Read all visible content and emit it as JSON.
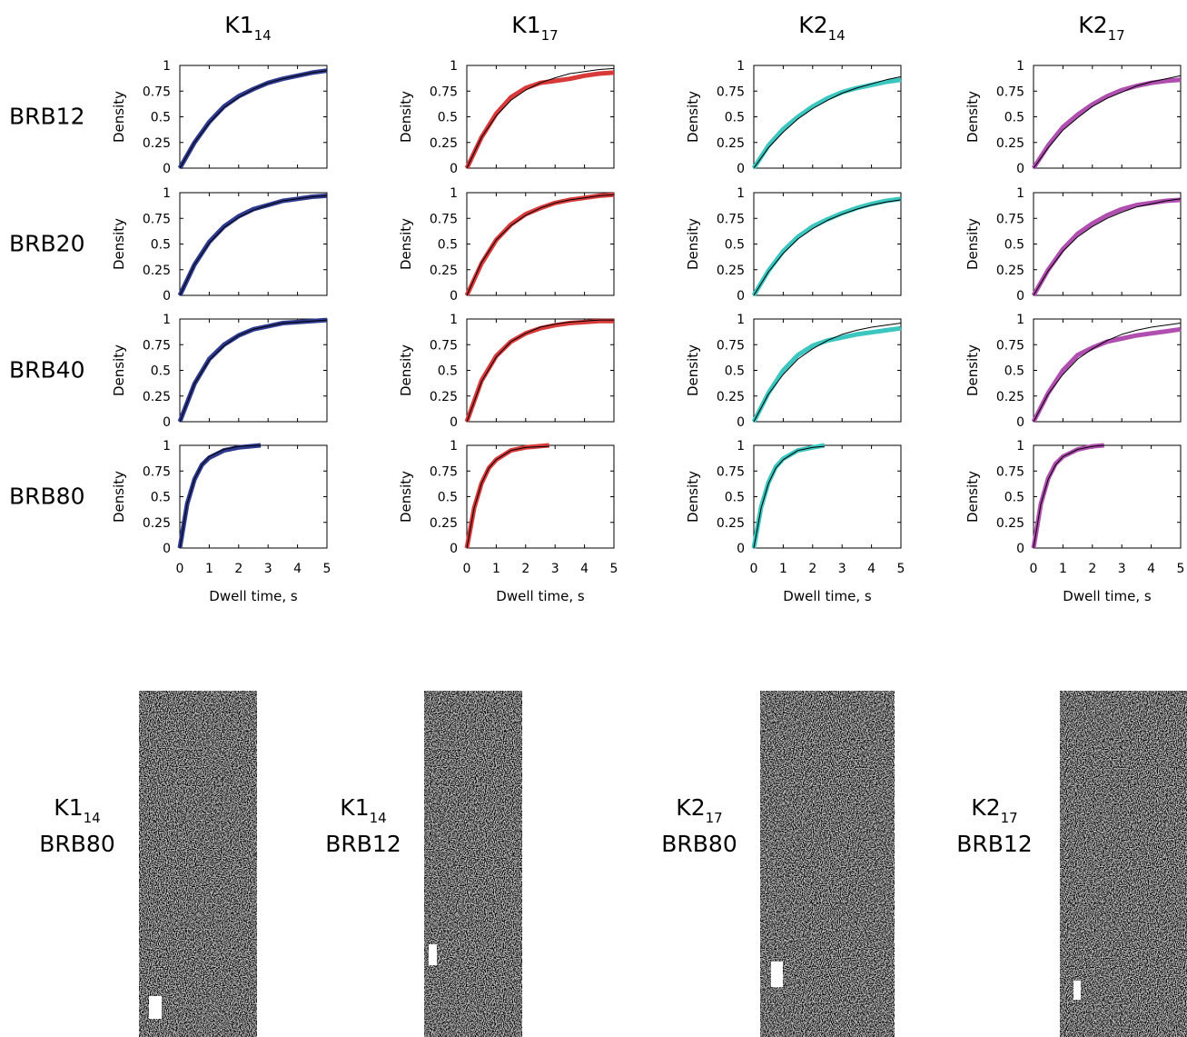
{
  "column_titles": [
    {
      "text": "K1",
      "subscript": "14"
    },
    {
      "text": "K1",
      "subscript": "17"
    },
    {
      "text": "K2",
      "subscript": "14"
    },
    {
      "text": "K2",
      "subscript": "17"
    }
  ],
  "row_labels": [
    "BRB12",
    "BRB20",
    "BRB40",
    "BRB80"
  ],
  "kymographs": [
    {
      "label": {
        "text": "K1",
        "subscript": "14"
      },
      "buffer": "BRB80"
    },
    {
      "label": {
        "text": "K1",
        "subscript": "14"
      },
      "buffer": "BRB12"
    },
    {
      "label": {
        "text": "K2",
        "subscript": "17"
      },
      "buffer": "BRB80"
    },
    {
      "label": {
        "text": "K2",
        "subscript": "17"
      },
      "buffer": "BRB12"
    }
  ],
  "chart_data": [
    {
      "type": "line",
      "ylabel": "Density",
      "xlim": [
        0,
        5
      ],
      "ylim": [
        0,
        1
      ],
      "xticks": [
        0,
        1,
        2,
        3,
        4,
        5
      ],
      "yticks": [
        0,
        0.25,
        0.5,
        0.75,
        1
      ],
      "show_xtick_labels": false,
      "x": [
        0,
        0.5,
        1,
        1.5,
        2,
        2.5,
        3,
        3.5,
        4,
        4.5,
        5
      ],
      "series": [
        {
          "color": "#2e3a8f",
          "width": 5,
          "values": [
            0,
            0.25,
            0.45,
            0.6,
            0.7,
            0.77,
            0.83,
            0.87,
            0.9,
            0.93,
            0.95
          ]
        },
        {
          "color": "#000000",
          "width": 1,
          "values": [
            0,
            0.25,
            0.44,
            0.59,
            0.69,
            0.77,
            0.83,
            0.87,
            0.9,
            0.93,
            0.95
          ]
        }
      ]
    },
    {
      "type": "line",
      "ylabel": "Density",
      "xlim": [
        0,
        5
      ],
      "ylim": [
        0,
        1
      ],
      "xticks": [
        0,
        1,
        2,
        3,
        4,
        5
      ],
      "yticks": [
        0,
        0.25,
        0.5,
        0.75,
        1
      ],
      "show_xtick_labels": false,
      "x": [
        0,
        0.5,
        1,
        1.5,
        2,
        2.5,
        3,
        3.5,
        4,
        4.5,
        5
      ],
      "series": [
        {
          "color": "#d83a3a",
          "width": 5,
          "values": [
            0,
            0.3,
            0.53,
            0.69,
            0.78,
            0.83,
            0.85,
            0.87,
            0.9,
            0.92,
            0.93
          ]
        },
        {
          "color": "#000000",
          "width": 1,
          "values": [
            0,
            0.3,
            0.51,
            0.66,
            0.76,
            0.83,
            0.88,
            0.92,
            0.94,
            0.96,
            0.97
          ]
        }
      ]
    },
    {
      "type": "line",
      "ylabel": "Density",
      "xlim": [
        0,
        5
      ],
      "ylim": [
        0,
        1
      ],
      "xticks": [
        0,
        1,
        2,
        3,
        4,
        5
      ],
      "yticks": [
        0,
        0.25,
        0.5,
        0.75,
        1
      ],
      "show_xtick_labels": false,
      "x": [
        0,
        0.5,
        1,
        1.5,
        2,
        2.5,
        3,
        3.5,
        4,
        4.5,
        5
      ],
      "series": [
        {
          "color": "#3cc6c0",
          "width": 5,
          "values": [
            0,
            0.22,
            0.38,
            0.5,
            0.6,
            0.68,
            0.74,
            0.78,
            0.81,
            0.84,
            0.86
          ]
        },
        {
          "color": "#000000",
          "width": 1,
          "values": [
            0,
            0.2,
            0.35,
            0.48,
            0.58,
            0.66,
            0.73,
            0.78,
            0.82,
            0.86,
            0.89
          ]
        }
      ]
    },
    {
      "type": "line",
      "ylabel": "Density",
      "xlim": [
        0,
        5
      ],
      "ylim": [
        0,
        1
      ],
      "xticks": [
        0,
        1,
        2,
        3,
        4,
        5
      ],
      "yticks": [
        0,
        0.25,
        0.5,
        0.75,
        1
      ],
      "show_xtick_labels": false,
      "x": [
        0,
        0.5,
        1,
        1.5,
        2,
        2.5,
        3,
        3.5,
        4,
        4.5,
        5
      ],
      "series": [
        {
          "color": "#b04fb0",
          "width": 5,
          "values": [
            0,
            0.22,
            0.4,
            0.52,
            0.62,
            0.7,
            0.76,
            0.8,
            0.83,
            0.85,
            0.86
          ]
        },
        {
          "color": "#000000",
          "width": 1,
          "values": [
            0,
            0.2,
            0.37,
            0.49,
            0.6,
            0.68,
            0.74,
            0.8,
            0.84,
            0.87,
            0.9
          ]
        }
      ]
    },
    {
      "type": "line",
      "ylabel": "Density",
      "xlim": [
        0,
        5
      ],
      "ylim": [
        0,
        1
      ],
      "xticks": [
        0,
        1,
        2,
        3,
        4,
        5
      ],
      "yticks": [
        0,
        0.25,
        0.5,
        0.75,
        1
      ],
      "show_xtick_labels": false,
      "x": [
        0,
        0.5,
        1,
        1.5,
        2,
        2.5,
        3,
        3.5,
        4,
        4.5,
        5
      ],
      "series": [
        {
          "color": "#2e3a8f",
          "width": 5,
          "values": [
            0,
            0.3,
            0.52,
            0.67,
            0.77,
            0.84,
            0.88,
            0.92,
            0.94,
            0.96,
            0.97
          ]
        },
        {
          "color": "#000000",
          "width": 1,
          "values": [
            0,
            0.3,
            0.51,
            0.66,
            0.76,
            0.83,
            0.88,
            0.92,
            0.94,
            0.96,
            0.97
          ]
        }
      ]
    },
    {
      "type": "line",
      "ylabel": "Density",
      "xlim": [
        0,
        5
      ],
      "ylim": [
        0,
        1
      ],
      "xticks": [
        0,
        1,
        2,
        3,
        4,
        5
      ],
      "yticks": [
        0,
        0.25,
        0.5,
        0.75,
        1
      ],
      "show_xtick_labels": false,
      "x": [
        0,
        0.5,
        1,
        1.5,
        2,
        2.5,
        3,
        3.5,
        4,
        4.5,
        5
      ],
      "series": [
        {
          "color": "#d83a3a",
          "width": 5,
          "values": [
            0,
            0.31,
            0.54,
            0.69,
            0.79,
            0.85,
            0.9,
            0.93,
            0.95,
            0.97,
            0.98
          ]
        },
        {
          "color": "#000000",
          "width": 1,
          "values": [
            0,
            0.32,
            0.54,
            0.68,
            0.78,
            0.85,
            0.9,
            0.93,
            0.95,
            0.97,
            0.98
          ]
        }
      ]
    },
    {
      "type": "line",
      "ylabel": "Density",
      "xlim": [
        0,
        5
      ],
      "ylim": [
        0,
        1
      ],
      "xticks": [
        0,
        1,
        2,
        3,
        4,
        5
      ],
      "yticks": [
        0,
        0.25,
        0.5,
        0.75,
        1
      ],
      "show_xtick_labels": false,
      "x": [
        0,
        0.5,
        1,
        1.5,
        2,
        2.5,
        3,
        3.5,
        4,
        4.5,
        5
      ],
      "series": [
        {
          "color": "#3cc6c0",
          "width": 5,
          "values": [
            0,
            0.24,
            0.43,
            0.57,
            0.67,
            0.74,
            0.8,
            0.85,
            0.89,
            0.92,
            0.94
          ]
        },
        {
          "color": "#000000",
          "width": 1,
          "values": [
            0,
            0.23,
            0.41,
            0.55,
            0.65,
            0.73,
            0.79,
            0.84,
            0.88,
            0.91,
            0.93
          ]
        }
      ]
    },
    {
      "type": "line",
      "ylabel": "Density",
      "xlim": [
        0,
        5
      ],
      "ylim": [
        0,
        1
      ],
      "xticks": [
        0,
        1,
        2,
        3,
        4,
        5
      ],
      "yticks": [
        0,
        0.25,
        0.5,
        0.75,
        1
      ],
      "show_xtick_labels": false,
      "x": [
        0,
        0.5,
        1,
        1.5,
        2,
        2.5,
        3,
        3.5,
        4,
        4.5,
        5
      ],
      "series": [
        {
          "color": "#b04fb0",
          "width": 5,
          "values": [
            0,
            0.25,
            0.45,
            0.6,
            0.7,
            0.78,
            0.84,
            0.88,
            0.9,
            0.92,
            0.93
          ]
        },
        {
          "color": "#000000",
          "width": 1,
          "values": [
            0,
            0.24,
            0.43,
            0.57,
            0.67,
            0.75,
            0.81,
            0.86,
            0.89,
            0.92,
            0.94
          ]
        }
      ]
    },
    {
      "type": "line",
      "ylabel": "Density",
      "xlim": [
        0,
        5
      ],
      "ylim": [
        0,
        1
      ],
      "xticks": [
        0,
        1,
        2,
        3,
        4,
        5
      ],
      "yticks": [
        0,
        0.25,
        0.5,
        0.75,
        1
      ],
      "show_xtick_labels": false,
      "x": [
        0,
        0.5,
        1,
        1.5,
        2,
        2.5,
        3,
        3.5,
        4,
        4.5,
        5
      ],
      "series": [
        {
          "color": "#2e3a8f",
          "width": 5,
          "values": [
            0,
            0.37,
            0.61,
            0.75,
            0.84,
            0.9,
            0.93,
            0.96,
            0.97,
            0.98,
            0.99
          ]
        },
        {
          "color": "#000000",
          "width": 1,
          "values": [
            0,
            0.37,
            0.6,
            0.74,
            0.84,
            0.9,
            0.93,
            0.96,
            0.97,
            0.98,
            0.99
          ]
        }
      ]
    },
    {
      "type": "line",
      "ylabel": "Density",
      "xlim": [
        0,
        5
      ],
      "ylim": [
        0,
        1
      ],
      "xticks": [
        0,
        1,
        2,
        3,
        4,
        5
      ],
      "yticks": [
        0,
        0.25,
        0.5,
        0.75,
        1
      ],
      "show_xtick_labels": false,
      "x": [
        0,
        0.5,
        1,
        1.5,
        2,
        2.5,
        3,
        3.5,
        4,
        4.5,
        5
      ],
      "series": [
        {
          "color": "#d83a3a",
          "width": 5,
          "values": [
            0,
            0.4,
            0.64,
            0.78,
            0.86,
            0.91,
            0.94,
            0.96,
            0.97,
            0.98,
            0.98
          ]
        },
        {
          "color": "#000000",
          "width": 1,
          "values": [
            0,
            0.39,
            0.63,
            0.78,
            0.86,
            0.92,
            0.95,
            0.97,
            0.98,
            0.99,
            0.99
          ]
        }
      ]
    },
    {
      "type": "line",
      "ylabel": "Density",
      "xlim": [
        0,
        5
      ],
      "ylim": [
        0,
        1
      ],
      "xticks": [
        0,
        1,
        2,
        3,
        4,
        5
      ],
      "yticks": [
        0,
        0.25,
        0.5,
        0.75,
        1
      ],
      "show_xtick_labels": false,
      "x": [
        0,
        0.5,
        1,
        1.5,
        2,
        2.5,
        3,
        3.5,
        4,
        4.5,
        5
      ],
      "series": [
        {
          "color": "#3cc6c0",
          "width": 5,
          "values": [
            0,
            0.28,
            0.5,
            0.65,
            0.74,
            0.79,
            0.82,
            0.85,
            0.87,
            0.89,
            0.91
          ]
        },
        {
          "color": "#000000",
          "width": 1,
          "values": [
            0,
            0.27,
            0.46,
            0.61,
            0.71,
            0.79,
            0.85,
            0.89,
            0.92,
            0.94,
            0.96
          ]
        }
      ]
    },
    {
      "type": "line",
      "ylabel": "Density",
      "xlim": [
        0,
        5
      ],
      "ylim": [
        0,
        1
      ],
      "xticks": [
        0,
        1,
        2,
        3,
        4,
        5
      ],
      "yticks": [
        0,
        0.25,
        0.5,
        0.75,
        1
      ],
      "show_xtick_labels": false,
      "x": [
        0,
        0.5,
        1,
        1.5,
        2,
        2.5,
        3,
        3.5,
        4,
        4.5,
        5
      ],
      "series": [
        {
          "color": "#b04fb0",
          "width": 5,
          "values": [
            0,
            0.28,
            0.5,
            0.65,
            0.72,
            0.78,
            0.81,
            0.84,
            0.86,
            0.88,
            0.9
          ]
        },
        {
          "color": "#000000",
          "width": 1,
          "values": [
            0,
            0.27,
            0.46,
            0.61,
            0.71,
            0.79,
            0.85,
            0.89,
            0.92,
            0.94,
            0.96
          ]
        }
      ]
    },
    {
      "type": "line",
      "ylabel": "Density",
      "xlabel": "Dwell time, s",
      "xlim": [
        0,
        5
      ],
      "ylim": [
        0,
        1
      ],
      "xticks": [
        0,
        1,
        2,
        3,
        4,
        5
      ],
      "yticks": [
        0,
        0.25,
        0.5,
        0.75,
        1
      ],
      "show_xtick_labels": true,
      "x": [
        0,
        0.25,
        0.5,
        0.75,
        1,
        1.5,
        2,
        2.75
      ],
      "series": [
        {
          "color": "#2e3a8f",
          "width": 5,
          "values": [
            0,
            0.43,
            0.67,
            0.81,
            0.88,
            0.95,
            0.98,
            1
          ]
        },
        {
          "color": "#000000",
          "width": 1,
          "values": [
            0,
            0.43,
            0.67,
            0.81,
            0.89,
            0.96,
            0.99,
            1
          ]
        }
      ]
    },
    {
      "type": "line",
      "ylabel": "Density",
      "xlabel": "Dwell time, s",
      "xlim": [
        0,
        5
      ],
      "ylim": [
        0,
        1
      ],
      "xticks": [
        0,
        1,
        2,
        3,
        4,
        5
      ],
      "yticks": [
        0,
        0.25,
        0.5,
        0.75,
        1
      ],
      "show_xtick_labels": true,
      "x": [
        0,
        0.25,
        0.5,
        0.75,
        1,
        1.5,
        2,
        2.8
      ],
      "series": [
        {
          "color": "#d83a3a",
          "width": 5,
          "values": [
            0,
            0.39,
            0.63,
            0.78,
            0.86,
            0.95,
            0.98,
            1
          ]
        },
        {
          "color": "#000000",
          "width": 1,
          "values": [
            0,
            0.39,
            0.63,
            0.78,
            0.86,
            0.95,
            0.98,
            0.99
          ]
        }
      ]
    },
    {
      "type": "line",
      "ylabel": "Density",
      "xlabel": "Dwell time, s",
      "xlim": [
        0,
        5
      ],
      "ylim": [
        0,
        1
      ],
      "xticks": [
        0,
        1,
        2,
        3,
        4,
        5
      ],
      "yticks": [
        0,
        0.25,
        0.5,
        0.75,
        1
      ],
      "show_xtick_labels": true,
      "x": [
        0,
        0.25,
        0.5,
        0.75,
        1,
        1.5,
        2,
        2.4
      ],
      "series": [
        {
          "color": "#3cc6c0",
          "width": 5,
          "values": [
            0,
            0.4,
            0.64,
            0.79,
            0.87,
            0.95,
            0.98,
            1
          ]
        },
        {
          "color": "#000000",
          "width": 1,
          "values": [
            0,
            0.39,
            0.63,
            0.78,
            0.86,
            0.95,
            0.98,
            0.99
          ]
        }
      ]
    },
    {
      "type": "line",
      "ylabel": "Density",
      "xlabel": "Dwell time, s",
      "xlim": [
        0,
        5
      ],
      "ylim": [
        0,
        1
      ],
      "xticks": [
        0,
        1,
        2,
        3,
        4,
        5
      ],
      "yticks": [
        0,
        0.25,
        0.5,
        0.75,
        1
      ],
      "show_xtick_labels": true,
      "x": [
        0,
        0.25,
        0.5,
        0.75,
        1,
        1.5,
        2,
        2.4
      ],
      "series": [
        {
          "color": "#b04fb0",
          "width": 5,
          "values": [
            0,
            0.43,
            0.68,
            0.82,
            0.89,
            0.96,
            0.99,
            1
          ]
        },
        {
          "color": "#000000",
          "width": 1,
          "values": [
            0,
            0.43,
            0.67,
            0.81,
            0.89,
            0.96,
            0.99,
            1
          ]
        }
      ]
    }
  ]
}
